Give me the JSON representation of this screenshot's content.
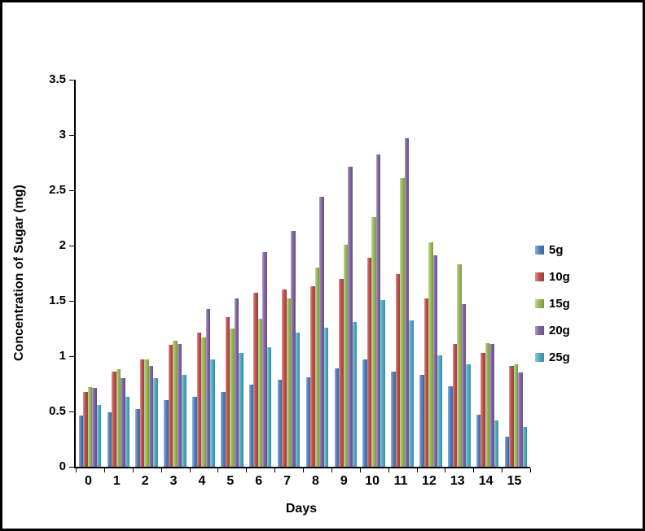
{
  "chart_data": {
    "type": "bar",
    "title": "",
    "xlabel": "Days",
    "ylabel": "Concentration of Sugar (mg)",
    "ylim": [
      0,
      3.5
    ],
    "y_ticks": [
      0,
      0.5,
      1,
      1.5,
      2,
      2.5,
      3,
      3.5
    ],
    "grid": false,
    "legend_position": "right",
    "categories": [
      "0",
      "1",
      "2",
      "3",
      "4",
      "5",
      "6",
      "7",
      "8",
      "9",
      "10",
      "11",
      "12",
      "13",
      "14",
      "15"
    ],
    "series": [
      {
        "name": "5g",
        "color": "#4F81BD",
        "values": [
          0.46,
          0.49,
          0.52,
          0.6,
          0.63,
          0.68,
          0.74,
          0.79,
          0.81,
          0.89,
          0.97,
          0.86,
          0.83,
          0.73,
          0.47,
          0.27
        ]
      },
      {
        "name": "10g",
        "color": "#C0504D",
        "values": [
          0.68,
          0.86,
          0.97,
          1.1,
          1.21,
          1.35,
          1.57,
          1.6,
          1.63,
          1.7,
          1.89,
          1.74,
          1.52,
          1.11,
          1.03,
          0.91
        ]
      },
      {
        "name": "15g",
        "color": "#9BBB59",
        "values": [
          0.72,
          0.88,
          0.97,
          1.14,
          1.17,
          1.25,
          1.34,
          1.52,
          1.8,
          2.01,
          2.26,
          2.61,
          2.03,
          1.83,
          1.12,
          0.93
        ]
      },
      {
        "name": "20g",
        "color": "#8064A2",
        "values": [
          0.71,
          0.8,
          0.91,
          1.11,
          1.43,
          1.52,
          1.94,
          2.13,
          2.44,
          2.71,
          2.82,
          2.97,
          1.91,
          1.47,
          1.11,
          0.85
        ]
      },
      {
        "name": "25g",
        "color": "#4BACC6",
        "values": [
          0.56,
          0.63,
          0.8,
          0.83,
          0.97,
          1.03,
          1.08,
          1.21,
          1.26,
          1.31,
          1.51,
          1.32,
          1.01,
          0.93,
          0.42,
          0.36
        ]
      }
    ]
  }
}
